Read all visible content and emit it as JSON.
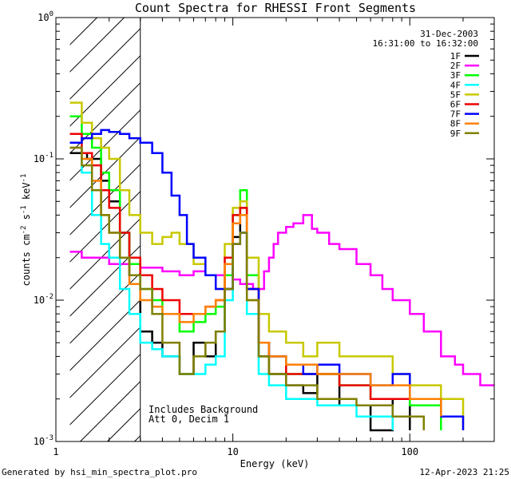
{
  "chart_data": {
    "type": "line",
    "title": "Count Spectra for RHESSI Front Segments",
    "xlabel": "Energy (keV)",
    "ylabel": "counts cm-2 s-1 keV-1",
    "x_scale": "log",
    "y_scale": "log",
    "xlim": [
      1,
      300
    ],
    "ylim": [
      0.001,
      1
    ],
    "x_ticks": [
      {
        "value": 1,
        "label": "1"
      },
      {
        "value": 10,
        "label": "10"
      },
      {
        "value": 100,
        "label": "100"
      }
    ],
    "y_ticks": [
      {
        "value": 0.001,
        "mant": "10",
        "exp": "-3"
      },
      {
        "value": 0.01,
        "mant": "10",
        "exp": "-2"
      },
      {
        "value": 0.1,
        "mant": "10",
        "exp": "-1"
      },
      {
        "value": 1,
        "mant": "10",
        "exp": "0"
      }
    ],
    "legend_placement": "top-right",
    "header_date": "31-Dec-2003",
    "header_time": "16:31:00 to 16:32:00",
    "hatched_region_keV": [
      1.2,
      3.0
    ],
    "annotation_line1": "Includes Background",
    "annotation_line2": "Att 0, Decim 1",
    "footer_left": "Generated by hsi_min_spectra_plot.pro",
    "footer_right": "12-Apr-2023 21:25",
    "series": [
      {
        "name": "1F",
        "color": "#000000",
        "points": [
          [
            1.2,
            0.11
          ],
          [
            1.5,
            0.1
          ],
          [
            1.8,
            0.07
          ],
          [
            2.0,
            0.05
          ],
          [
            2.3,
            0.03
          ],
          [
            2.6,
            0.015
          ],
          [
            3.0,
            0.006
          ],
          [
            3.5,
            0.005
          ],
          [
            4.0,
            0.004
          ],
          [
            5.0,
            0.003
          ],
          [
            6.0,
            0.005
          ],
          [
            7.0,
            0.004
          ],
          [
            8.0,
            0.006
          ],
          [
            9.0,
            0.012
          ],
          [
            10.0,
            0.028
          ],
          [
            11.0,
            0.045
          ],
          [
            12.0,
            0.012
          ],
          [
            14.0,
            0.004
          ],
          [
            16.0,
            0.003
          ],
          [
            20.0,
            0.0025
          ],
          [
            25.0,
            0.0022
          ],
          [
            30.0,
            0.003
          ],
          [
            40.0,
            0.0018
          ],
          [
            60.0,
            0.0012
          ],
          [
            80.0,
            0.002
          ],
          [
            100.0,
            0.0012
          ]
        ]
      },
      {
        "name": "2F",
        "color": "#ff00ff",
        "points": [
          [
            1.2,
            0.022
          ],
          [
            1.4,
            0.02
          ],
          [
            1.6,
            0.02
          ],
          [
            1.8,
            0.02
          ],
          [
            2.0,
            0.018
          ],
          [
            2.3,
            0.018
          ],
          [
            2.6,
            0.018
          ],
          [
            3.0,
            0.017
          ],
          [
            3.5,
            0.017
          ],
          [
            4.0,
            0.016
          ],
          [
            5.0,
            0.015
          ],
          [
            6.0,
            0.016
          ],
          [
            7.0,
            0.015
          ],
          [
            8.0,
            0.015
          ],
          [
            9.0,
            0.015
          ],
          [
            10.0,
            0.014
          ],
          [
            11.0,
            0.013
          ],
          [
            12.0,
            0.013
          ],
          [
            13.0,
            0.012
          ],
          [
            14.0,
            0.012
          ],
          [
            15.0,
            0.016
          ],
          [
            16.0,
            0.02
          ],
          [
            17.0,
            0.025
          ],
          [
            18.0,
            0.03
          ],
          [
            20.0,
            0.033
          ],
          [
            22.0,
            0.035
          ],
          [
            25.0,
            0.04
          ],
          [
            28.0,
            0.032
          ],
          [
            30.0,
            0.03
          ],
          [
            35.0,
            0.025
          ],
          [
            40.0,
            0.023
          ],
          [
            50.0,
            0.018
          ],
          [
            60.0,
            0.015
          ],
          [
            70.0,
            0.012
          ],
          [
            80.0,
            0.01
          ],
          [
            100.0,
            0.008
          ],
          [
            120.0,
            0.006
          ],
          [
            150.0,
            0.004
          ],
          [
            180.0,
            0.0035
          ],
          [
            200.0,
            0.003
          ],
          [
            250.0,
            0.0025
          ],
          [
            300.0,
            0.0025
          ]
        ]
      },
      {
        "name": "3F",
        "color": "#00ff00",
        "points": [
          [
            1.2,
            0.2
          ],
          [
            1.4,
            0.15
          ],
          [
            1.6,
            0.12
          ],
          [
            1.8,
            0.08
          ],
          [
            2.0,
            0.06
          ],
          [
            2.3,
            0.03
          ],
          [
            2.6,
            0.018
          ],
          [
            3.0,
            0.012
          ],
          [
            3.5,
            0.01
          ],
          [
            4.0,
            0.008
          ],
          [
            5.0,
            0.006
          ],
          [
            6.0,
            0.007
          ],
          [
            7.0,
            0.008
          ],
          [
            8.0,
            0.009
          ],
          [
            9.0,
            0.015
          ],
          [
            10.0,
            0.04
          ],
          [
            11.0,
            0.06
          ],
          [
            12.0,
            0.015
          ],
          [
            14.0,
            0.005
          ],
          [
            16.0,
            0.004
          ],
          [
            20.0,
            0.003
          ],
          [
            25.0,
            0.003
          ],
          [
            30.0,
            0.003
          ],
          [
            40.0,
            0.0025
          ],
          [
            60.0,
            0.002
          ],
          [
            80.0,
            0.002
          ],
          [
            100.0,
            0.0018
          ],
          [
            150.0,
            0.0012
          ]
        ]
      },
      {
        "name": "4F",
        "color": "#00ffff",
        "points": [
          [
            1.2,
            0.13
          ],
          [
            1.4,
            0.08
          ],
          [
            1.6,
            0.04
          ],
          [
            1.8,
            0.025
          ],
          [
            2.0,
            0.02
          ],
          [
            2.3,
            0.012
          ],
          [
            2.6,
            0.008
          ],
          [
            3.0,
            0.005
          ],
          [
            3.5,
            0.0045
          ],
          [
            4.0,
            0.004
          ],
          [
            5.0,
            0.003
          ],
          [
            6.0,
            0.003
          ],
          [
            7.0,
            0.0035
          ],
          [
            8.0,
            0.004
          ],
          [
            9.0,
            0.01
          ],
          [
            10.0,
            0.025
          ],
          [
            11.0,
            0.03
          ],
          [
            12.0,
            0.008
          ],
          [
            14.0,
            0.003
          ],
          [
            16.0,
            0.0025
          ],
          [
            20.0,
            0.002
          ],
          [
            30.0,
            0.0018
          ],
          [
            50.0,
            0.0015
          ],
          [
            80.0,
            0.0012
          ]
        ]
      },
      {
        "name": "5F",
        "color": "#c8c800",
        "points": [
          [
            1.2,
            0.25
          ],
          [
            1.4,
            0.18
          ],
          [
            1.6,
            0.14
          ],
          [
            1.8,
            0.12
          ],
          [
            2.0,
            0.1
          ],
          [
            2.3,
            0.06
          ],
          [
            2.6,
            0.04
          ],
          [
            3.0,
            0.03
          ],
          [
            3.5,
            0.025
          ],
          [
            4.0,
            0.028
          ],
          [
            4.5,
            0.03
          ],
          [
            5.0,
            0.025
          ],
          [
            6.0,
            0.018
          ],
          [
            7.0,
            0.015
          ],
          [
            8.0,
            0.012
          ],
          [
            9.0,
            0.025
          ],
          [
            10.0,
            0.045
          ],
          [
            11.0,
            0.05
          ],
          [
            12.0,
            0.02
          ],
          [
            14.0,
            0.008
          ],
          [
            16.0,
            0.006
          ],
          [
            20.0,
            0.005
          ],
          [
            25.0,
            0.004
          ],
          [
            30.0,
            0.005
          ],
          [
            40.0,
            0.004
          ],
          [
            60.0,
            0.004
          ],
          [
            80.0,
            0.003
          ],
          [
            100.0,
            0.0025
          ],
          [
            150.0,
            0.002
          ],
          [
            200.0,
            0.0012
          ]
        ]
      },
      {
        "name": "6F",
        "color": "#ee0000",
        "points": [
          [
            1.2,
            0.15
          ],
          [
            1.4,
            0.11
          ],
          [
            1.6,
            0.09
          ],
          [
            1.8,
            0.06
          ],
          [
            2.0,
            0.045
          ],
          [
            2.3,
            0.03
          ],
          [
            2.6,
            0.02
          ],
          [
            3.0,
            0.015
          ],
          [
            3.5,
            0.012
          ],
          [
            4.0,
            0.01
          ],
          [
            5.0,
            0.008
          ],
          [
            6.0,
            0.008
          ],
          [
            7.0,
            0.009
          ],
          [
            8.0,
            0.01
          ],
          [
            9.0,
            0.02
          ],
          [
            10.0,
            0.04
          ],
          [
            11.0,
            0.045
          ],
          [
            12.0,
            0.012
          ],
          [
            14.0,
            0.005
          ],
          [
            16.0,
            0.004
          ],
          [
            20.0,
            0.003
          ],
          [
            30.0,
            0.003
          ],
          [
            40.0,
            0.0025
          ],
          [
            60.0,
            0.002
          ],
          [
            100.0,
            0.002
          ],
          [
            150.0,
            0.0015
          ]
        ]
      },
      {
        "name": "7F",
        "color": "#0000ff",
        "points": [
          [
            1.2,
            0.13
          ],
          [
            1.4,
            0.14
          ],
          [
            1.6,
            0.15
          ],
          [
            1.8,
            0.16
          ],
          [
            2.0,
            0.155
          ],
          [
            2.3,
            0.15
          ],
          [
            2.6,
            0.14
          ],
          [
            3.0,
            0.13
          ],
          [
            3.5,
            0.11
          ],
          [
            4.0,
            0.08
          ],
          [
            4.5,
            0.055
          ],
          [
            5.0,
            0.04
          ],
          [
            5.5,
            0.025
          ],
          [
            6.0,
            0.02
          ],
          [
            7.0,
            0.015
          ],
          [
            8.0,
            0.012
          ],
          [
            9.0,
            0.012
          ],
          [
            10.0,
            0.025
          ],
          [
            11.0,
            0.03
          ],
          [
            12.0,
            0.012
          ],
          [
            14.0,
            0.005
          ],
          [
            16.0,
            0.004
          ],
          [
            20.0,
            0.0035
          ],
          [
            25.0,
            0.003
          ],
          [
            30.0,
            0.0035
          ],
          [
            40.0,
            0.003
          ],
          [
            60.0,
            0.0025
          ],
          [
            80.0,
            0.003
          ],
          [
            100.0,
            0.002
          ],
          [
            150.0,
            0.0015
          ],
          [
            200.0,
            0.0012
          ]
        ]
      },
      {
        "name": "8F",
        "color": "#ff8000",
        "points": [
          [
            1.2,
            0.12
          ],
          [
            1.4,
            0.1
          ],
          [
            1.6,
            0.07
          ],
          [
            1.8,
            0.04
          ],
          [
            2.0,
            0.03
          ],
          [
            2.3,
            0.02
          ],
          [
            2.6,
            0.013
          ],
          [
            3.0,
            0.01
          ],
          [
            3.5,
            0.009
          ],
          [
            4.0,
            0.008
          ],
          [
            5.0,
            0.007
          ],
          [
            6.0,
            0.008
          ],
          [
            7.0,
            0.009
          ],
          [
            8.0,
            0.01
          ],
          [
            9.0,
            0.018
          ],
          [
            10.0,
            0.035
          ],
          [
            11.0,
            0.04
          ],
          [
            12.0,
            0.01
          ],
          [
            14.0,
            0.005
          ],
          [
            16.0,
            0.004
          ],
          [
            20.0,
            0.0035
          ],
          [
            30.0,
            0.003
          ],
          [
            40.0,
            0.003
          ],
          [
            60.0,
            0.0025
          ],
          [
            100.0,
            0.002
          ],
          [
            150.0,
            0.0015
          ]
        ]
      },
      {
        "name": "9F",
        "color": "#808000",
        "points": [
          [
            1.2,
            0.12
          ],
          [
            1.4,
            0.09
          ],
          [
            1.6,
            0.06
          ],
          [
            1.8,
            0.04
          ],
          [
            2.0,
            0.03
          ],
          [
            2.3,
            0.02
          ],
          [
            2.6,
            0.015
          ],
          [
            3.0,
            0.012
          ],
          [
            3.5,
            0.008
          ],
          [
            4.0,
            0.005
          ],
          [
            5.0,
            0.003
          ],
          [
            6.0,
            0.004
          ],
          [
            7.0,
            0.005
          ],
          [
            8.0,
            0.006
          ],
          [
            9.0,
            0.012
          ],
          [
            10.0,
            0.025
          ],
          [
            11.0,
            0.03
          ],
          [
            12.0,
            0.01
          ],
          [
            14.0,
            0.004
          ],
          [
            16.0,
            0.003
          ],
          [
            20.0,
            0.0025
          ],
          [
            30.0,
            0.002
          ],
          [
            50.0,
            0.0018
          ],
          [
            80.0,
            0.0015
          ],
          [
            120.0,
            0.0012
          ]
        ]
      }
    ]
  }
}
